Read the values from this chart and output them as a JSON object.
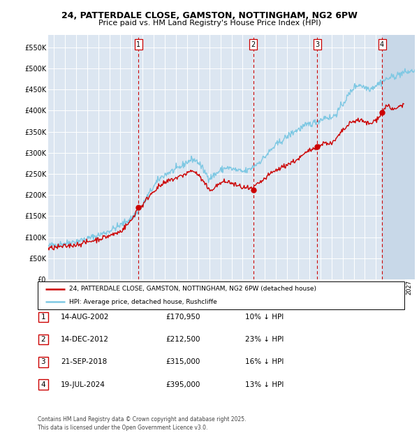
{
  "title_line1": "24, PATTERDALE CLOSE, GAMSTON, NOTTINGHAM, NG2 6PW",
  "title_line2": "Price paid vs. HM Land Registry's House Price Index (HPI)",
  "background_color": "#ffffff",
  "plot_bg_color": "#dce6f1",
  "grid_color": "#ffffff",
  "hpi_color": "#7ec8e3",
  "price_color": "#cc0000",
  "sales": [
    {
      "label": "1",
      "x": 2002.619,
      "price": 170950
    },
    {
      "label": "2",
      "x": 2012.956,
      "price": 212500
    },
    {
      "label": "3",
      "x": 2018.726,
      "price": 315000
    },
    {
      "label": "4",
      "x": 2024.548,
      "price": 395000
    }
  ],
  "table_entries": [
    {
      "num": "1",
      "date": "14-AUG-2002",
      "price": "£170,950",
      "note": "10% ↓ HPI"
    },
    {
      "num": "2",
      "date": "14-DEC-2012",
      "price": "£212,500",
      "note": "23% ↓ HPI"
    },
    {
      "num": "3",
      "date": "21-SEP-2018",
      "price": "£315,000",
      "note": "16% ↓ HPI"
    },
    {
      "num": "4",
      "date": "19-JUL-2024",
      "price": "£395,000",
      "note": "13% ↓ HPI"
    }
  ],
  "legend_line1": "24, PATTERDALE CLOSE, GAMSTON, NOTTINGHAM, NG2 6PW (detached house)",
  "legend_line2": "HPI: Average price, detached house, Rushcliffe",
  "footer": "Contains HM Land Registry data © Crown copyright and database right 2025.\nThis data is licensed under the Open Government Licence v3.0.",
  "ylim": [
    0,
    580000
  ],
  "yticks": [
    0,
    50000,
    100000,
    150000,
    200000,
    250000,
    300000,
    350000,
    400000,
    450000,
    500000,
    550000
  ],
  "xlim_start": 1994.5,
  "xlim_end": 2027.5,
  "hatch_start": 2024.548
}
